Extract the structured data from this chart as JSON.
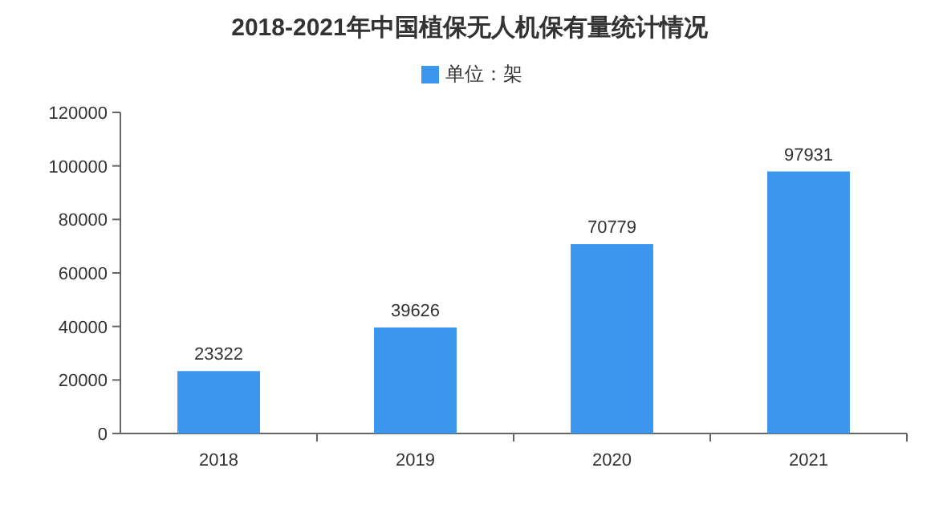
{
  "chart_data": {
    "type": "bar",
    "title": "2018-2021年中国植保无人机保有量统计情况",
    "categories": [
      "2018",
      "2019",
      "2020",
      "2021"
    ],
    "series": [
      {
        "name": "单位：架",
        "color": "#3d96ee",
        "values": [
          23322,
          39626,
          70779,
          97931
        ]
      }
    ],
    "ylim": [
      0,
      120000
    ],
    "yticks": [
      0,
      20000,
      40000,
      60000,
      80000,
      100000,
      120000
    ],
    "data_labels": true,
    "legend": "top"
  }
}
